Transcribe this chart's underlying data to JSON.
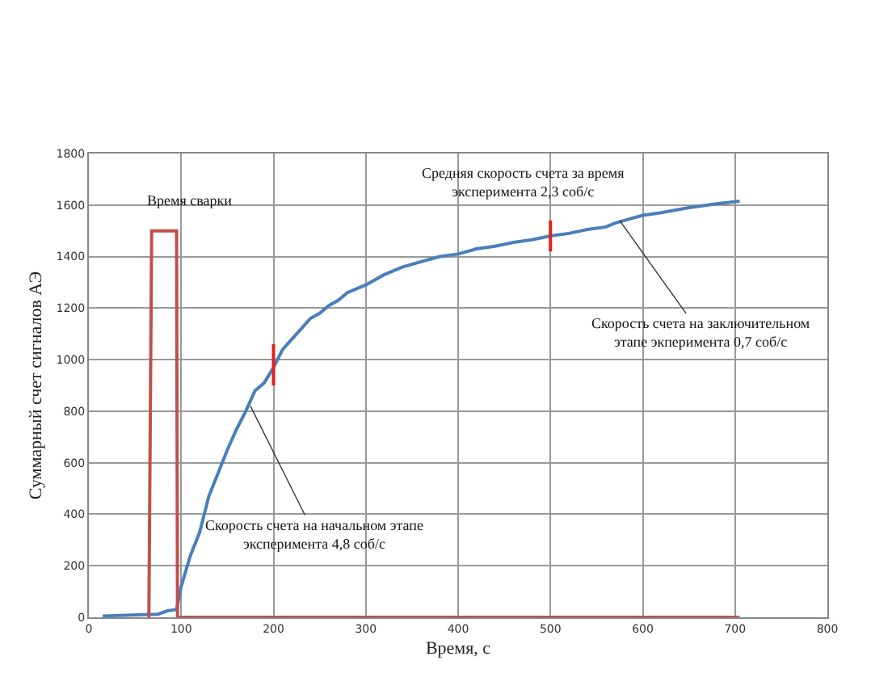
{
  "chart_data": {
    "type": "line",
    "xlabel": "Время, с",
    "ylabel": "Суммарный счет сигналов АЭ",
    "xlim": [
      0,
      800
    ],
    "xticks": [
      0,
      100,
      200,
      300,
      400,
      500,
      600,
      700,
      800
    ],
    "ylim": [
      0,
      1800
    ],
    "yticks": [
      0,
      200,
      400,
      600,
      800,
      1000,
      1200,
      1400,
      1600,
      1800
    ],
    "grid": true,
    "marker": "none",
    "line_style": "solid",
    "series": [
      {
        "color": "#4a7ebb",
        "x": [
          15,
          40,
          60,
          75,
          85,
          95,
          100,
          110,
          120,
          130,
          140,
          150,
          160,
          170,
          180,
          190,
          200,
          210,
          220,
          230,
          240,
          250,
          260,
          270,
          280,
          290,
          300,
          320,
          340,
          360,
          380,
          400,
          420,
          440,
          460,
          480,
          500,
          520,
          540,
          560,
          570,
          580,
          600,
          620,
          650,
          680,
          705
        ],
        "values": [
          5,
          8,
          10,
          12,
          25,
          30,
          120,
          240,
          330,
          470,
          560,
          650,
          730,
          800,
          880,
          910,
          970,
          1040,
          1080,
          1120,
          1160,
          1180,
          1210,
          1230,
          1260,
          1275,
          1290,
          1330,
          1360,
          1380,
          1400,
          1410,
          1430,
          1440,
          1455,
          1465,
          1480,
          1490,
          1505,
          1515,
          1530,
          1540,
          1560,
          1570,
          1590,
          1605,
          1615
        ]
      },
      {
        "color": "#c0504d",
        "x": [
          65,
          68,
          95,
          96,
          705
        ],
        "values": [
          0,
          1500,
          1500,
          0,
          0
        ]
      },
      {
        "color": "#e02020",
        "x": [
          200,
          200
        ],
        "values": [
          900,
          1060
        ]
      },
      {
        "color": "#e02020",
        "x": [
          500,
          500
        ],
        "values": [
          1420,
          1540
        ]
      }
    ],
    "annotations": [
      "Время сварки",
      "Средняя скорость счета за время\nэксперимента 2,3 соб/с",
      {
        "text": "Скорость счета на начальном этапе\nэксперимента 4,8 соб/с",
        "x": 175,
        "y": 820
      },
      {
        "text": "Скорость счета на заключительном\nэтапе экперимента 0,7 соб/с",
        "x": 575,
        "y": 1540
      }
    ]
  }
}
